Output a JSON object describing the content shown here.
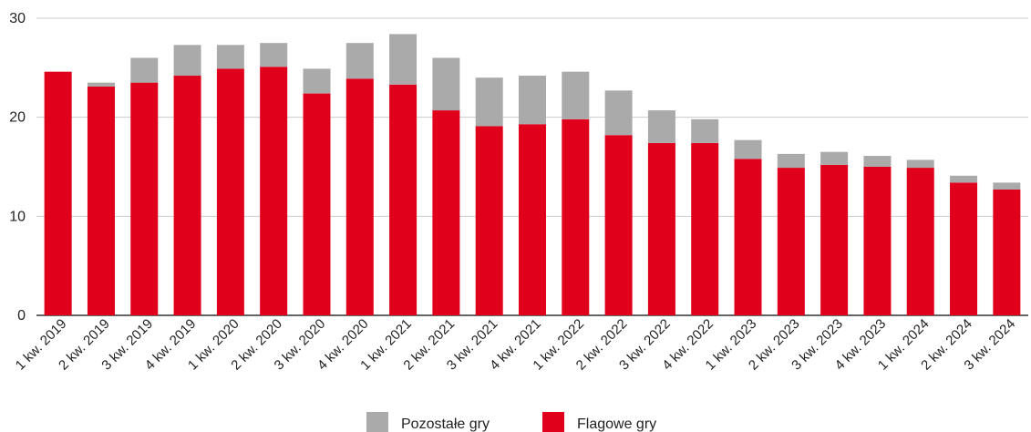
{
  "chart_data": {
    "type": "bar",
    "stacked": true,
    "categories": [
      "1 kw. 2019",
      "2 kw. 2019",
      "3 kw. 2019",
      "4 kw. 2019",
      "1 kw. 2020",
      "2 kw. 2020",
      "3 kw. 2020",
      "4 kw. 2020",
      "1 kw. 2021",
      "2 kw. 2021",
      "3 kw. 2021",
      "4 kw. 2021",
      "1 kw. 2022",
      "2 kw. 2022",
      "3 kw. 2022",
      "4 kw. 2022",
      "1 kw. 2023",
      "2 kw. 2023",
      "3 kw. 2023",
      "4 kw. 2023",
      "1 kw. 2024",
      "2 kw. 2024",
      "3 kw. 2024"
    ],
    "series": [
      {
        "name": "Flagowe gry",
        "color": "#e0001b",
        "values": [
          24.6,
          23.1,
          23.5,
          24.2,
          24.9,
          25.1,
          22.4,
          23.9,
          23.3,
          20.7,
          19.1,
          19.3,
          19.8,
          18.2,
          17.4,
          17.4,
          15.8,
          14.9,
          15.2,
          15.0,
          14.9,
          13.4,
          12.7
        ]
      },
      {
        "name": "Pozostałe gry",
        "color": "#aaaaaa",
        "values": [
          0.0,
          0.4,
          2.5,
          3.1,
          2.4,
          2.4,
          2.5,
          3.6,
          5.1,
          5.3,
          4.9,
          4.9,
          4.8,
          4.5,
          3.3,
          2.4,
          1.9,
          1.4,
          1.3,
          1.1,
          0.8,
          0.7,
          0.7
        ]
      }
    ],
    "legend_order": [
      "Pozostałe gry",
      "Flagowe gry"
    ],
    "y_ticks": [
      "0",
      "10",
      "20",
      "30"
    ],
    "ylim": [
      0,
      30
    ],
    "grid": true,
    "legend_position": "bottom"
  }
}
